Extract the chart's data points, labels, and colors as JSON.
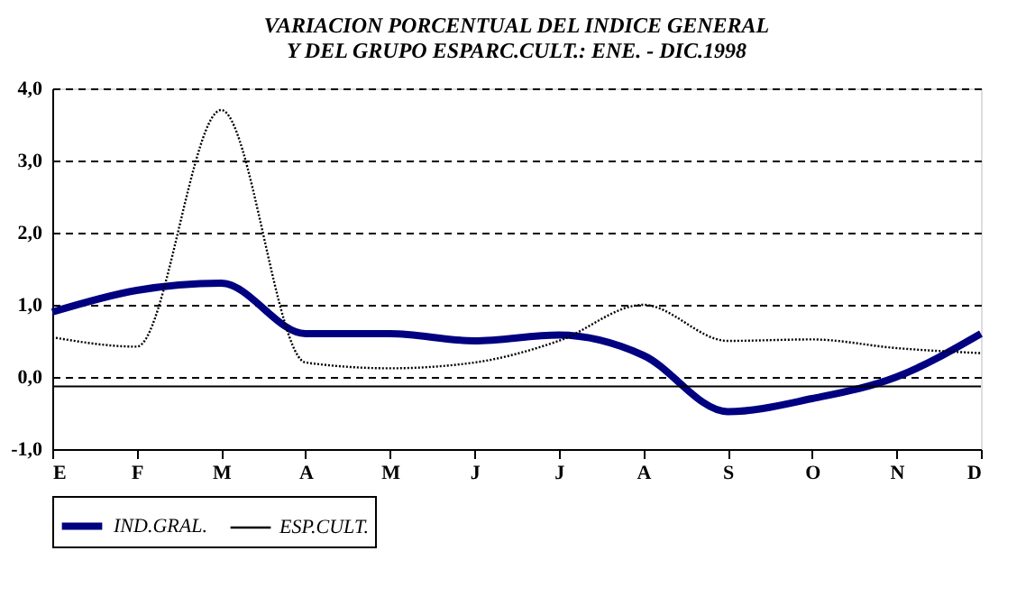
{
  "chart_data": {
    "type": "line",
    "title": "VARIACION PORCENTUAL DEL INDICE GENERAL\nY DEL GRUPO ESPARC.CULT.: ENE. - DIC.1998",
    "categories": [
      "E",
      "F",
      "M",
      "A",
      "M",
      "J",
      "J",
      "A",
      "S",
      "O",
      "N",
      "D"
    ],
    "series": [
      {
        "name": "IND.GRAL.",
        "color": "#000080",
        "values": [
          0.9,
          1.2,
          1.3,
          0.6,
          0.6,
          0.5,
          0.58,
          0.3,
          -0.48,
          -0.3,
          0.0,
          0.6
        ]
      },
      {
        "name": "ESP.CULT.",
        "color": "#000000",
        "line_style": "dotted",
        "values": [
          0.55,
          0.42,
          3.7,
          0.2,
          0.12,
          0.2,
          0.5,
          1.0,
          0.5,
          0.52,
          0.4,
          0.33
        ]
      }
    ],
    "ylim": [
      -1.0,
      4.0
    ],
    "yticks": [
      {
        "value": -1,
        "label": "-1,0"
      },
      {
        "value": 0,
        "label": "0,0"
      },
      {
        "value": 1,
        "label": "1,0"
      },
      {
        "value": 2,
        "label": "2,0"
      },
      {
        "value": 3,
        "label": "3,0"
      },
      {
        "value": 4,
        "label": "4,0"
      }
    ],
    "grid": "y",
    "legend": "bottom",
    "marker": "none",
    "line_style": "solid",
    "ref_lines": [
      {
        "axis": "y",
        "value": -0.13,
        "label": null,
        "color": "#000000",
        "line_style": "solid"
      }
    ]
  }
}
